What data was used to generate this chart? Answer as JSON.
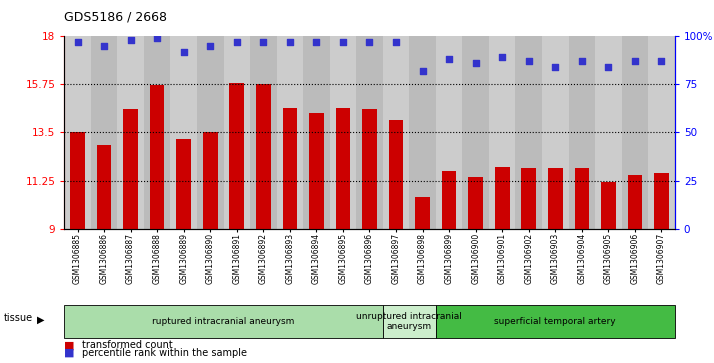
{
  "title": "GDS5186 / 2668",
  "samples": [
    "GSM1306885",
    "GSM1306886",
    "GSM1306887",
    "GSM1306888",
    "GSM1306889",
    "GSM1306890",
    "GSM1306891",
    "GSM1306892",
    "GSM1306893",
    "GSM1306894",
    "GSM1306895",
    "GSM1306896",
    "GSM1306897",
    "GSM1306898",
    "GSM1306899",
    "GSM1306900",
    "GSM1306901",
    "GSM1306902",
    "GSM1306903",
    "GSM1306904",
    "GSM1306905",
    "GSM1306906",
    "GSM1306907"
  ],
  "bar_values": [
    13.5,
    12.9,
    14.6,
    15.7,
    13.2,
    13.5,
    15.8,
    15.75,
    14.65,
    14.4,
    14.65,
    14.6,
    14.1,
    10.5,
    11.7,
    11.4,
    11.9,
    11.85,
    11.85,
    11.85,
    11.2,
    11.5,
    11.6
  ],
  "dot_values": [
    97,
    95,
    98,
    99,
    92,
    95,
    97,
    97,
    97,
    97,
    97,
    97,
    97,
    82,
    88,
    86,
    89,
    87,
    84,
    87,
    84,
    87,
    87
  ],
  "ylim_left": [
    9,
    18
  ],
  "ylim_right": [
    0,
    100
  ],
  "yticks_left": [
    9,
    11.25,
    13.5,
    15.75,
    18
  ],
  "yticks_right": [
    0,
    25,
    50,
    75,
    100
  ],
  "ytick_labels_left": [
    "9",
    "11.25",
    "13.5",
    "15.75",
    "18"
  ],
  "ytick_labels_right": [
    "0",
    "25",
    "50",
    "75",
    "100%"
  ],
  "hlines": [
    11.25,
    13.5,
    15.75
  ],
  "bar_color": "#cc0000",
  "dot_color": "#3333cc",
  "col_bg_even": "#cccccc",
  "col_bg_odd": "#bbbbbb",
  "plot_bg": "#cccccc",
  "groups": [
    {
      "label": "ruptured intracranial aneurysm",
      "start": 0,
      "end": 12,
      "color": "#aaddaa"
    },
    {
      "label": "unruptured intracranial\naneurysm",
      "start": 12,
      "end": 14,
      "color": "#cceecc"
    },
    {
      "label": "superficial temporal artery",
      "start": 14,
      "end": 23,
      "color": "#44bb44"
    }
  ],
  "tissue_label": "tissue",
  "legend_bar_label": "transformed count",
  "legend_dot_label": "percentile rank within the sample",
  "bar_bottom": 9
}
